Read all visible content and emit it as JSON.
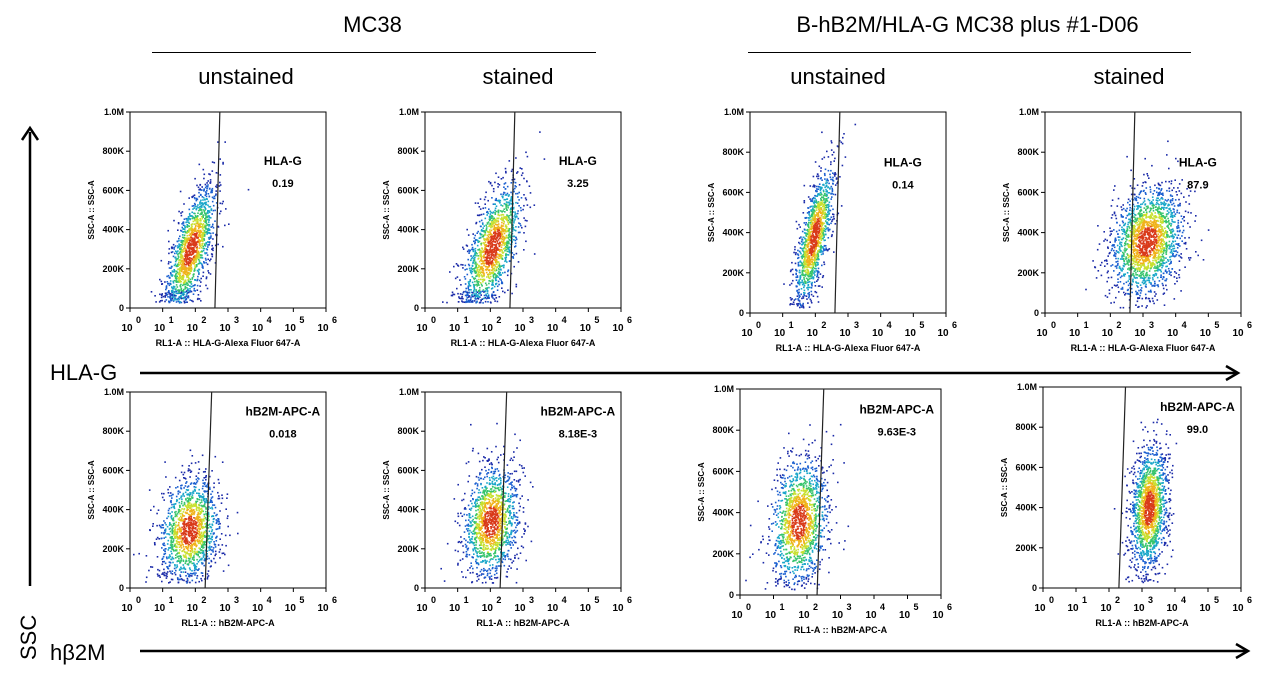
{
  "groups": [
    {
      "title": "MC38",
      "columns": [
        "unstained",
        "stained"
      ]
    },
    {
      "title": "B-hB2M/HLA-G MC38 plus #1-D06",
      "columns": [
        "unstained",
        "stained"
      ]
    }
  ],
  "axes": {
    "vertical_label": "SSC",
    "row_labels": [
      "HLA-G",
      "hβ2M"
    ]
  },
  "common": {
    "y_ticks": [
      "0",
      "200K",
      "400K",
      "600K",
      "800K",
      "1.0M"
    ],
    "y_axis_label": "SSC-A :: SSC-A",
    "x_tick_powers": [
      "0",
      "1",
      "2",
      "3",
      "4",
      "5",
      "6"
    ],
    "x_tick_base": "10"
  },
  "chart_data": [
    {
      "type": "scatter",
      "row": 0,
      "col": 0,
      "gate_label": "HLA-G",
      "gate_value": "0.19",
      "xlabel": "RL1-A :: HLA-G-Alexa Fluor    647-A",
      "ylabel": "SSC-A :: SSC-A",
      "x_log_range": [
        0,
        6
      ],
      "y_range": [
        0,
        1000000
      ],
      "gate_x": [
        2.6,
        2.75
      ]
    },
    {
      "type": "scatter",
      "row": 0,
      "col": 1,
      "gate_label": "HLA-G",
      "gate_value": "3.25",
      "xlabel": "RL1-A :: HLA-G-Alexa Fluor    647-A",
      "ylabel": "SSC-A :: SSC-A",
      "x_log_range": [
        0,
        6
      ],
      "y_range": [
        0,
        1000000
      ],
      "gate_x": [
        2.6,
        2.75
      ]
    },
    {
      "type": "scatter",
      "row": 0,
      "col": 2,
      "gate_label": "HLA-G",
      "gate_value": "0.14",
      "xlabel": "RL1-A :: HLA-G-Alexa Fluor    647-A",
      "ylabel": "SSC-A :: SSC-A",
      "x_log_range": [
        0,
        6
      ],
      "y_range": [
        0,
        1000000
      ],
      "gate_x": [
        2.6,
        2.75
      ]
    },
    {
      "type": "scatter",
      "row": 0,
      "col": 3,
      "gate_label": "HLA-G",
      "gate_value": "87.9",
      "xlabel": "RL1-A :: HLA-G-Alexa Fluor    647-A",
      "ylabel": "SSC-A :: SSC-A",
      "x_log_range": [
        0,
        6
      ],
      "y_range": [
        0,
        1000000
      ],
      "gate_x": [
        2.6,
        2.75
      ]
    },
    {
      "type": "scatter",
      "row": 1,
      "col": 0,
      "gate_label": "hB2M-APC-A",
      "gate_value": "0.018",
      "xlabel": "RL1-A :: hB2M-APC-A",
      "ylabel": "SSC-A :: SSC-A",
      "x_log_range": [
        0,
        6
      ],
      "y_range": [
        0,
        1000000
      ],
      "gate_x": [
        2.3,
        2.5
      ]
    },
    {
      "type": "scatter",
      "row": 1,
      "col": 1,
      "gate_label": "hB2M-APC-A",
      "gate_value": "8.18E-3",
      "xlabel": "RL1-A :: hB2M-APC-A",
      "ylabel": "SSC-A :: SSC-A",
      "x_log_range": [
        0,
        6
      ],
      "y_range": [
        0,
        1000000
      ],
      "gate_x": [
        2.3,
        2.5
      ]
    },
    {
      "type": "scatter",
      "row": 1,
      "col": 2,
      "gate_label": "hB2M-APC-A",
      "gate_value": "9.63E-3",
      "xlabel": "RL1-A :: hB2M-APC-A",
      "ylabel": "SSC-A :: SSC-A",
      "x_log_range": [
        0,
        6
      ],
      "y_range": [
        0,
        1000000
      ],
      "gate_x": [
        2.3,
        2.5
      ]
    },
    {
      "type": "scatter",
      "row": 1,
      "col": 3,
      "gate_label": "hB2M-APC-A",
      "gate_value": "99.0",
      "xlabel": "RL1-A :: hB2M-APC-A",
      "ylabel": "SSC-A :: SSC-A",
      "x_log_range": [
        0,
        6
      ],
      "y_range": [
        0,
        1000000
      ],
      "gate_x": [
        2.3,
        2.5
      ]
    }
  ]
}
